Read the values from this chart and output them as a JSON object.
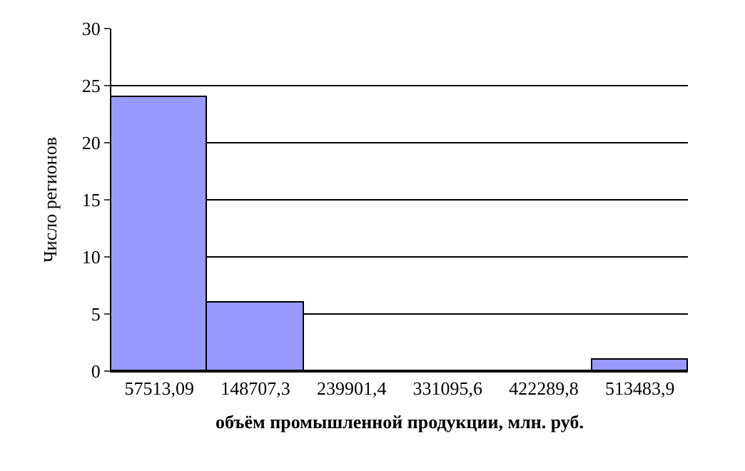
{
  "chart_data": {
    "type": "bar",
    "xlabel": "объём промышленной продукции, млн. руб.",
    "ylabel": "Число регионов",
    "categories": [
      "57513,09",
      "148707,3",
      "239901,4",
      "331095,6",
      "422289,8",
      "513483,9"
    ],
    "values": [
      24,
      6,
      0,
      0,
      0,
      1
    ],
    "color": "#9999ff",
    "ylim": [
      0,
      30
    ],
    "yticks": [
      0,
      5,
      10,
      15,
      20,
      25,
      30
    ],
    "grid": "y",
    "legend": false
  }
}
